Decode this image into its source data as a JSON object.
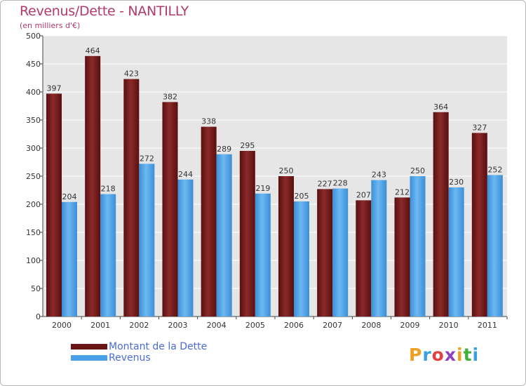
{
  "title": "Revenus/Dette - NANTILLY",
  "subtitle": "(en milliers d'€)",
  "colors": {
    "dette": "#6b1414",
    "revenus": "#4aa0e6",
    "title": "#b03a6a",
    "plot_bg": "#e6e6e6",
    "grid": "#ffffff"
  },
  "chart_data": {
    "type": "bar",
    "categories": [
      "2000",
      "2001",
      "2002",
      "2003",
      "2004",
      "2005",
      "2006",
      "2007",
      "2008",
      "2009",
      "2010",
      "2011"
    ],
    "series": [
      {
        "name": "Montant de la Dette",
        "values": [
          397,
          464,
          423,
          382,
          338,
          295,
          250,
          227,
          207,
          212,
          364,
          327
        ]
      },
      {
        "name": "Revenus",
        "values": [
          204,
          218,
          272,
          244,
          289,
          219,
          205,
          228,
          243,
          250,
          230,
          252
        ]
      }
    ],
    "ylim": [
      0,
      500
    ],
    "yticks": [
      0,
      50,
      100,
      150,
      200,
      250,
      300,
      350,
      400,
      450,
      500
    ],
    "grid": true,
    "legend_position": "bottom-left"
  },
  "legend": [
    {
      "label": "Montant de la Dette",
      "color": "#6b1414"
    },
    {
      "label": "Revenus",
      "color": "#4aa0e6"
    }
  ],
  "logo": {
    "letters": [
      "P",
      "r",
      "o",
      "x",
      "i",
      "t",
      "i"
    ],
    "colors": [
      "#f0a020",
      "#3aa0e0",
      "#e04040",
      "#9040c0",
      "#f0a020",
      "#40b040",
      "#3aa0e0"
    ]
  }
}
